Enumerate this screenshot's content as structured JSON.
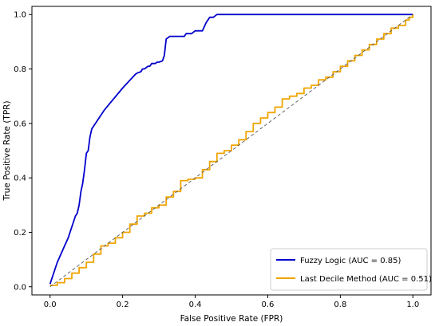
{
  "chart_data": {
    "type": "line",
    "xlabel": "False Positive Rate (FPR)",
    "ylabel": "True Positive Rate (TPR)",
    "xlim": [
      -0.05,
      1.05
    ],
    "ylim": [
      -0.03,
      1.03
    ],
    "xticks": [
      "0.0",
      "0.2",
      "0.4",
      "0.6",
      "0.8",
      "1.0"
    ],
    "yticks": [
      "0.0",
      "0.2",
      "0.4",
      "0.6",
      "0.8",
      "1.0"
    ],
    "grid": false,
    "legend_position": "bottom-right",
    "series": [
      {
        "name": "Fuzzy Logic (AUC = 0.85)",
        "color": "#0000cc",
        "step": false,
        "x": [
          0.0,
          0.02,
          0.04,
          0.05,
          0.06,
          0.07,
          0.075,
          0.08,
          0.085,
          0.09,
          0.095,
          0.1,
          0.105,
          0.11,
          0.115,
          0.12,
          0.15,
          0.2,
          0.235,
          0.24,
          0.25,
          0.255,
          0.26,
          0.27,
          0.275,
          0.28,
          0.29,
          0.295,
          0.3,
          0.31,
          0.315,
          0.32,
          0.325,
          0.33,
          0.35,
          0.37,
          0.375,
          0.39,
          0.4,
          0.42,
          0.43,
          0.44,
          0.45,
          0.46,
          0.5,
          1.0
        ],
        "y": [
          0.01,
          0.09,
          0.15,
          0.18,
          0.22,
          0.26,
          0.27,
          0.3,
          0.35,
          0.38,
          0.43,
          0.49,
          0.5,
          0.55,
          0.58,
          0.59,
          0.65,
          0.73,
          0.78,
          0.785,
          0.79,
          0.8,
          0.8,
          0.81,
          0.81,
          0.82,
          0.82,
          0.825,
          0.825,
          0.83,
          0.85,
          0.91,
          0.915,
          0.92,
          0.92,
          0.92,
          0.93,
          0.93,
          0.94,
          0.94,
          0.97,
          0.99,
          0.99,
          1.0,
          1.0,
          1.0
        ]
      },
      {
        "name": "Last Decile Method (AUC = 0.51)",
        "color": "#f0a500",
        "step": true,
        "x": [
          0.0,
          0.02,
          0.04,
          0.06,
          0.08,
          0.1,
          0.12,
          0.14,
          0.16,
          0.18,
          0.2,
          0.22,
          0.24,
          0.26,
          0.28,
          0.3,
          0.32,
          0.34,
          0.36,
          0.38,
          0.4,
          0.42,
          0.44,
          0.46,
          0.48,
          0.5,
          0.52,
          0.54,
          0.56,
          0.58,
          0.6,
          0.62,
          0.64,
          0.66,
          0.68,
          0.7,
          0.72,
          0.74,
          0.76,
          0.78,
          0.8,
          0.82,
          0.84,
          0.86,
          0.88,
          0.9,
          0.92,
          0.94,
          0.96,
          0.98,
          0.99,
          1.0
        ],
        "y": [
          0.005,
          0.015,
          0.03,
          0.05,
          0.07,
          0.09,
          0.12,
          0.15,
          0.16,
          0.18,
          0.2,
          0.23,
          0.26,
          0.27,
          0.29,
          0.3,
          0.33,
          0.35,
          0.39,
          0.395,
          0.4,
          0.43,
          0.46,
          0.49,
          0.5,
          0.52,
          0.54,
          0.57,
          0.6,
          0.62,
          0.64,
          0.66,
          0.69,
          0.7,
          0.71,
          0.73,
          0.74,
          0.76,
          0.77,
          0.79,
          0.81,
          0.83,
          0.85,
          0.87,
          0.89,
          0.91,
          0.93,
          0.95,
          0.96,
          0.98,
          0.99,
          1.0
        ]
      },
      {
        "name": "",
        "color": "#555555",
        "dashed": true,
        "x": [
          0.0,
          1.0
        ],
        "y": [
          0.0,
          1.0
        ]
      }
    ]
  }
}
